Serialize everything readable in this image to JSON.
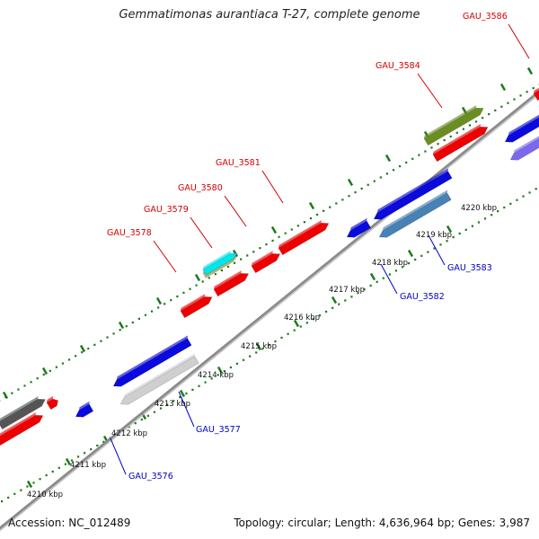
{
  "header": {
    "title": "Gemmatimonas aurantiaca T-27, complete genome"
  },
  "footer": {
    "accession": "Accession: NC_012489",
    "summary": "Topology: circular; Length: 4,636,964 bp; Genes: 3,987"
  },
  "colors": {
    "backbone": "#8c8c8c",
    "forward_label": "#d40000",
    "reverse_label": "#0000c8",
    "tick_green": "#1e7a1e",
    "red_gene": "#ee0000",
    "blue_gene": "#0a0adc",
    "steel_gene": "#4682b4",
    "olive_gene": "#6b8e23",
    "cyan_gene": "#00e5ee",
    "khaki_gene": "#bdb76b",
    "gray_gene": "#666666",
    "silver_gene": "#cfcfcf",
    "purple_gene": "#7b68ee"
  },
  "scale_ticks": [
    {
      "label": "4210 kbp"
    },
    {
      "label": "4211 kbp"
    },
    {
      "label": "4212 kbp"
    },
    {
      "label": "4213 kbp"
    },
    {
      "label": "4214 kbp"
    },
    {
      "label": "4215 kbp"
    },
    {
      "label": "4216 kbp"
    },
    {
      "label": "4217 kbp"
    },
    {
      "label": "4218 kbp"
    },
    {
      "label": "4219 kbp"
    },
    {
      "label": "4220 kbp"
    }
  ],
  "forward_gene_labels": [
    "GAU_3578",
    "GAU_3579",
    "GAU_3580",
    "GAU_3581",
    "GAU_3584",
    "GAU_3586"
  ],
  "reverse_gene_labels": [
    "GAU_3576",
    "GAU_3577",
    "GAU_3582",
    "GAU_3583"
  ]
}
